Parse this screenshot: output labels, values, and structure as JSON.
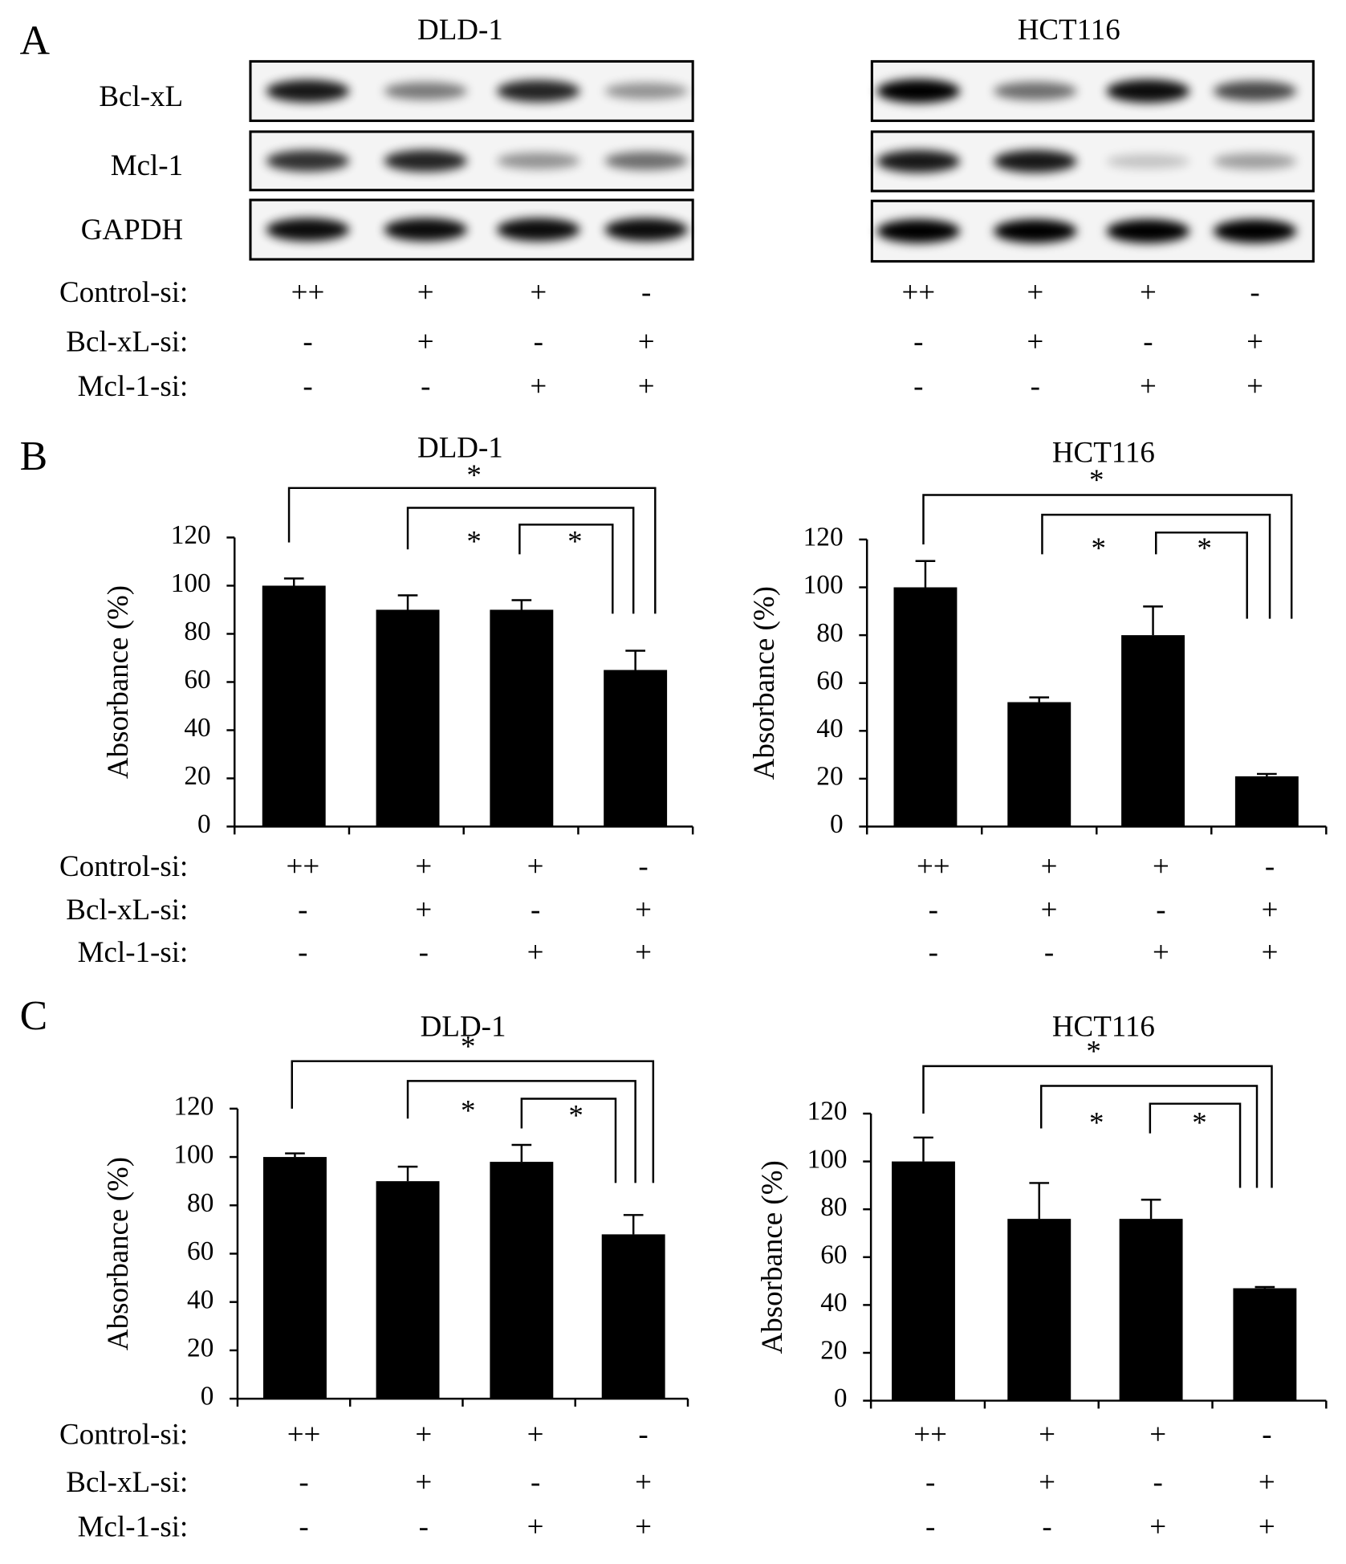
{
  "panel_labels": [
    "A",
    "B",
    "C"
  ],
  "blots": [
    {
      "title": "DLD-1",
      "rows": [
        "Bcl-xL",
        "Mcl-1",
        "GAPDH"
      ]
    },
    {
      "title": "HCT116",
      "rows": [
        "Bcl-xL",
        "Mcl-1",
        "GAPDH"
      ]
    }
  ],
  "conditions": {
    "labels": [
      "Control-si:",
      "Bcl-xL-si:",
      "Mcl-1-si:"
    ],
    "marks": [
      [
        "++",
        "+",
        "+",
        "-"
      ],
      [
        "-",
        "+",
        "-",
        "+"
      ],
      [
        "-",
        "-",
        "+",
        "+"
      ]
    ]
  },
  "chart_data": [
    {
      "type": "bar",
      "title": "DLD-1",
      "y_label": "Absorbance (%)",
      "color": "#000000",
      "values": [
        100,
        90,
        90,
        65
      ],
      "errors": [
        3,
        6,
        4,
        8
      ],
      "ylim": [
        0,
        120
      ],
      "yticks": [
        0,
        20,
        40,
        60,
        80,
        100,
        120
      ],
      "annotations": [
        "*",
        "*",
        "*"
      ]
    },
    {
      "type": "bar",
      "title": "HCT116",
      "y_label": "Absorbance (%)",
      "color": "#000000",
      "values": [
        100,
        52,
        80,
        21
      ],
      "errors": [
        11,
        2,
        12,
        1
      ],
      "ylim": [
        0,
        120
      ],
      "yticks": [
        0,
        20,
        40,
        60,
        80,
        100,
        120
      ],
      "annotations": [
        "*",
        "*",
        "*"
      ]
    },
    {
      "type": "bar",
      "title": "DLD-1",
      "y_label": "Absorbance (%)",
      "color": "#000000",
      "values": [
        100,
        90,
        98,
        68
      ],
      "errors": [
        1.5,
        6,
        7,
        8
      ],
      "ylim": [
        0,
        120
      ],
      "yticks": [
        0,
        20,
        40,
        60,
        80,
        100,
        120
      ],
      "annotations": [
        "*",
        "*",
        "*"
      ]
    },
    {
      "type": "bar",
      "title": "HCT116",
      "y_label": "Absorbance (%)",
      "color": "#000000",
      "values": [
        100,
        76,
        76,
        47
      ],
      "errors": [
        10,
        15,
        8,
        0.5
      ],
      "ylim": [
        0,
        120
      ],
      "yticks": [
        0,
        20,
        40,
        60,
        80,
        100,
        120
      ],
      "annotations": [
        "*",
        "*",
        "*"
      ]
    }
  ]
}
